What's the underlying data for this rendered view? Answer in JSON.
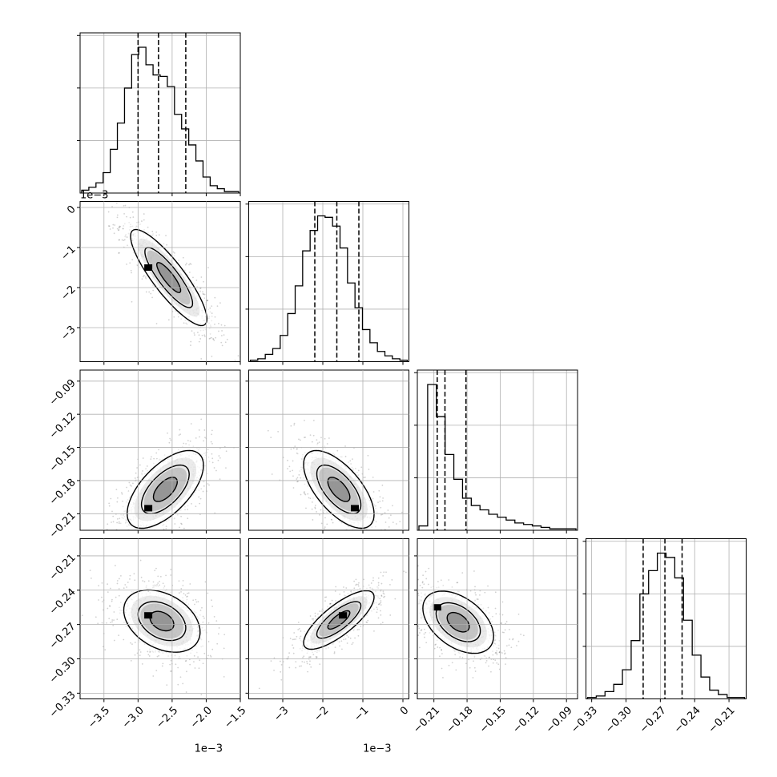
{
  "chart_data": {
    "type": "corner",
    "grid": true,
    "n_params": 4,
    "params": [
      {
        "range": [
          -3.85,
          -1.5
        ],
        "ticks": [
          -3.5,
          -3.0,
          -2.5,
          -2.0,
          -1.5
        ],
        "tick_labels": [
          "−3.5",
          "−3.0",
          "−2.5",
          "−2.0",
          "−1.5"
        ],
        "offset_label": "1e−3",
        "quantiles": [
          -3.0,
          -2.7,
          -2.3
        ]
      },
      {
        "range": [
          -3.85,
          0.15
        ],
        "ticks": [
          -3,
          -2,
          -1,
          0
        ],
        "tick_labels": [
          "−3",
          "−2",
          "−1",
          "0"
        ],
        "offset_label": "1e−3",
        "quantiles": [
          -2.2,
          -1.65,
          -1.1
        ]
      },
      {
        "range": [
          -0.225,
          -0.08
        ],
        "ticks": [
          -0.21,
          -0.18,
          -0.15,
          -0.12,
          -0.09
        ],
        "tick_labels": [
          "−0.21",
          "−0.18",
          "−0.15",
          "−0.12",
          "−0.09"
        ],
        "offset_label": "",
        "quantiles": [
          -0.207,
          -0.2,
          -0.181
        ]
      },
      {
        "range": [
          -0.335,
          -0.195
        ],
        "ticks": [
          -0.33,
          -0.3,
          -0.27,
          -0.24,
          -0.21
        ],
        "tick_labels": [
          "−0.33",
          "−0.30",
          "−0.27",
          "−0.24",
          "−0.21"
        ],
        "offset_label": "",
        "quantiles": [
          -0.285,
          -0.266,
          -0.251
        ]
      }
    ],
    "histograms": [
      {
        "param": 0,
        "counts": [
          2,
          4,
          7,
          14,
          30,
          48,
          72,
          95,
          100,
          88,
          81,
          80,
          73,
          54,
          44,
          33,
          22,
          11,
          5,
          3,
          1,
          1
        ]
      },
      {
        "param": 1,
        "counts": [
          1,
          2,
          5,
          9,
          18,
          33,
          52,
          76,
          90,
          100,
          99,
          93,
          78,
          54,
          37,
          22,
          13,
          7,
          4,
          2,
          1
        ]
      },
      {
        "param": 2,
        "counts": [
          3,
          100,
          78,
          52,
          35,
          22,
          17,
          14,
          11,
          9,
          7,
          5,
          4,
          3,
          2,
          1,
          1,
          1
        ]
      },
      {
        "param": 3,
        "counts": [
          1,
          2,
          5,
          10,
          20,
          40,
          72,
          88,
          100,
          97,
          83,
          54,
          30,
          15,
          6,
          3,
          1,
          1
        ]
      }
    ],
    "scatter": [
      {
        "x": 0,
        "y": 1,
        "center": [
          -2.55,
          -1.75
        ],
        "sd": [
          0.35,
          0.75
        ],
        "rho": -0.86,
        "mode": [
          -2.85,
          -1.5
        ],
        "contours": [
          0.5,
          1.0,
          1.6
        ]
      },
      {
        "x": 0,
        "y": 2,
        "center": [
          -2.6,
          -0.188
        ],
        "sd": [
          0.35,
          0.022
        ],
        "rho": 0.62,
        "mode": [
          -2.85,
          -0.205
        ],
        "contours": [
          0.5,
          1.0,
          1.6
        ]
      },
      {
        "x": 1,
        "y": 2,
        "center": [
          -1.6,
          -0.188
        ],
        "sd": [
          0.55,
          0.022
        ],
        "rho": -0.64,
        "mode": [
          -1.2,
          -0.205
        ],
        "contours": [
          0.5,
          1.0,
          1.6
        ]
      },
      {
        "x": 0,
        "y": 3,
        "center": [
          -2.65,
          -0.267
        ],
        "sd": [
          0.35,
          0.017
        ],
        "rho": -0.35,
        "mode": [
          -2.85,
          -0.262
        ],
        "contours": [
          0.5,
          1.0,
          1.6
        ]
      },
      {
        "x": 1,
        "y": 3,
        "center": [
          -1.6,
          -0.266
        ],
        "sd": [
          0.55,
          0.016
        ],
        "rho": 0.78,
        "mode": [
          -1.5,
          -0.262
        ],
        "contours": [
          0.5,
          1.0,
          1.6
        ]
      },
      {
        "x": 2,
        "y": 3,
        "center": [
          -0.188,
          -0.268
        ],
        "sd": [
          0.02,
          0.017
        ],
        "rho": -0.45,
        "mode": [
          -0.207,
          -0.255
        ],
        "contours": [
          0.5,
          1.0,
          1.6
        ]
      }
    ]
  }
}
